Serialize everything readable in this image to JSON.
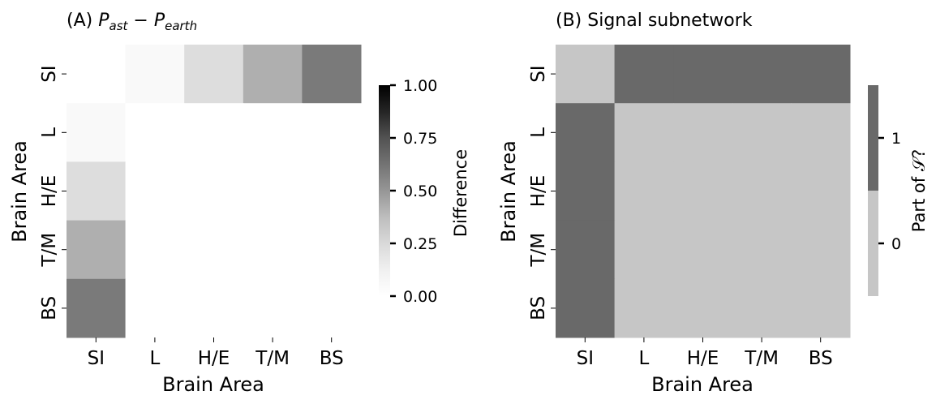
{
  "chart_data": [
    {
      "type": "heatmap",
      "title_prefix": "(A) ",
      "title_math": {
        "p1": "P",
        "sub1": "ast",
        "op": " − ",
        "p2": "P",
        "sub2": "earth"
      },
      "xlabel": "Brain Area",
      "ylabel": "Brain Area",
      "categories": [
        "SI",
        "L",
        "H/E",
        "T/M",
        "BS"
      ],
      "values": [
        [
          0.0,
          0.05,
          0.23,
          0.42,
          0.6
        ],
        [
          0.05,
          0.0,
          0.0,
          0.0,
          0.0
        ],
        [
          0.23,
          0.0,
          0.0,
          0.0,
          0.0
        ],
        [
          0.42,
          0.0,
          0.0,
          0.0,
          0.0
        ],
        [
          0.6,
          0.0,
          0.0,
          0.0,
          0.0
        ]
      ],
      "colormap": "Greys",
      "vlim": [
        0,
        1
      ],
      "colorbar": {
        "label": "Difference",
        "ticks": [
          "0.00",
          "0.25",
          "0.50",
          "0.75",
          "1.00"
        ],
        "tick_values": [
          0,
          0.25,
          0.5,
          0.75,
          1
        ]
      }
    },
    {
      "type": "heatmap",
      "title": "(B) Signal subnetwork",
      "xlabel": "Brain Area",
      "ylabel": "Brain Area",
      "categories": [
        "SI",
        "L",
        "H/E",
        "T/M",
        "BS"
      ],
      "values": [
        [
          0,
          1,
          1,
          1,
          1
        ],
        [
          1,
          0,
          0,
          0,
          0
        ],
        [
          1,
          0,
          0,
          0,
          0
        ],
        [
          1,
          0,
          0,
          0,
          0
        ],
        [
          1,
          0,
          0,
          0,
          0
        ]
      ],
      "colors": {
        "0": "#c6c6c6",
        "1": "#696969"
      },
      "colorbar": {
        "label": "Part of 𝒮?",
        "ticks": [
          "0",
          "1"
        ],
        "tick_values": [
          0,
          1
        ]
      }
    }
  ]
}
